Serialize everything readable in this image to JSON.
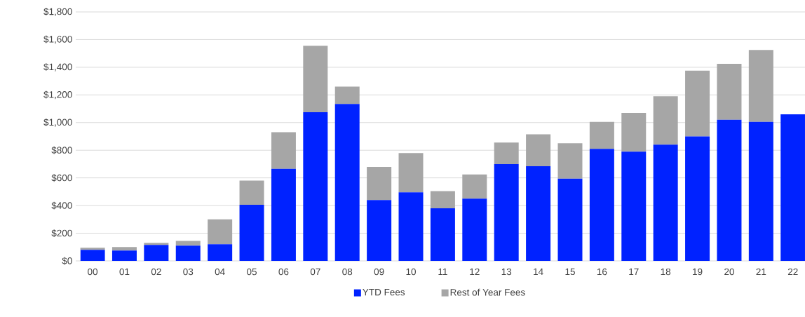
{
  "chart_data": {
    "type": "bar",
    "stacked": true,
    "categories": [
      "00",
      "01",
      "02",
      "03",
      "04",
      "05",
      "06",
      "07",
      "08",
      "09",
      "10",
      "11",
      "12",
      "13",
      "14",
      "15",
      "16",
      "17",
      "18",
      "19",
      "20",
      "21",
      "22"
    ],
    "series": [
      {
        "name": "YTD Fees",
        "color": "#0022ff",
        "values": [
          80,
          75,
          115,
          110,
          120,
          405,
          665,
          1075,
          1135,
          440,
          495,
          380,
          450,
          700,
          685,
          595,
          810,
          790,
          840,
          900,
          1020,
          1005,
          1060
        ]
      },
      {
        "name": "Rest of Year Fees",
        "color": "#a6a6a6",
        "values": [
          15,
          25,
          15,
          35,
          180,
          175,
          265,
          480,
          125,
          240,
          285,
          125,
          175,
          155,
          230,
          255,
          195,
          280,
          350,
          475,
          405,
          520,
          0
        ]
      }
    ],
    "ylim": [
      0,
      1800
    ],
    "yticks": [
      {
        "value": 0,
        "label": "$0"
      },
      {
        "value": 200,
        "label": "$200"
      },
      {
        "value": 400,
        "label": "$400"
      },
      {
        "value": 600,
        "label": "$600"
      },
      {
        "value": 800,
        "label": "$800"
      },
      {
        "value": 1000,
        "label": "$1,000"
      },
      {
        "value": 1200,
        "label": "$1,200"
      },
      {
        "value": 1400,
        "label": "$1,400"
      },
      {
        "value": 1600,
        "label": "$1,600"
      },
      {
        "value": 1800,
        "label": "$1,800"
      }
    ],
    "grid": "y",
    "legend": "bottom"
  }
}
